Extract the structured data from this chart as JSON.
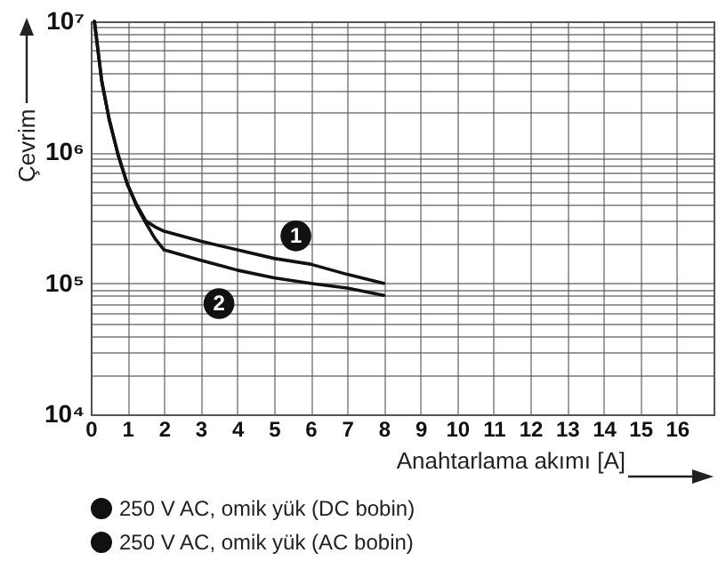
{
  "chart_data": {
    "type": "line",
    "xlabel": "Anahtarlama akımı [A]",
    "ylabel": "Çevrim",
    "x": [
      0.1,
      0.3,
      0.5,
      0.75,
      1,
      1.25,
      1.5,
      1.75,
      2,
      3,
      4,
      5,
      6,
      7,
      8
    ],
    "series": [
      {
        "name": "250 V AC, omik yük (DC bobin)",
        "color": "#111111",
        "values": [
          10000000,
          3500000,
          1800000,
          950000,
          570000,
          400000,
          300000,
          270000,
          250000,
          210000,
          180000,
          155000,
          140000,
          117000,
          100000
        ]
      },
      {
        "name": "250 V AC, omik yük (AC bobin)",
        "color": "#111111",
        "values": [
          10000000,
          3500000,
          1800000,
          950000,
          570000,
          390000,
          290000,
          220000,
          180000,
          150000,
          126000,
          110000,
          100000,
          92000,
          81000
        ]
      }
    ],
    "annotations": [
      {
        "text": "1",
        "x": 5.6,
        "y": 230000
      },
      {
        "text": "2",
        "x": 3.5,
        "y": 70000
      }
    ],
    "log": "y",
    "xlim": [
      0,
      17
    ],
    "xticks": [
      0,
      1,
      2,
      3,
      4,
      5,
      6,
      7,
      8,
      9,
      10,
      11,
      12,
      13,
      14,
      15,
      16
    ],
    "ylim": [
      10000,
      10000000
    ],
    "yticks": [
      {
        "value": 10000,
        "label": "10⁴"
      },
      {
        "value": 20000,
        "label": null
      },
      {
        "value": 30000,
        "label": null
      },
      {
        "value": 40000,
        "label": null
      },
      {
        "value": 50000,
        "label": null
      },
      {
        "value": 60000,
        "label": null
      },
      {
        "value": 70000,
        "label": null
      },
      {
        "value": 80000,
        "label": null
      },
      {
        "value": 90000,
        "label": null
      },
      {
        "value": 100000,
        "label": "10⁵"
      },
      {
        "value": 200000,
        "label": null
      },
      {
        "value": 300000,
        "label": null
      },
      {
        "value": 400000,
        "label": null
      },
      {
        "value": 500000,
        "label": null
      },
      {
        "value": 600000,
        "label": null
      },
      {
        "value": 700000,
        "label": null
      },
      {
        "value": 800000,
        "label": null
      },
      {
        "value": 900000,
        "label": null
      },
      {
        "value": 1000000,
        "label": "10⁶"
      },
      {
        "value": 2000000,
        "label": null
      },
      {
        "value": 3000000,
        "label": null
      },
      {
        "value": 4000000,
        "label": null
      },
      {
        "value": 5000000,
        "label": null
      },
      {
        "value": 6000000,
        "label": null
      },
      {
        "value": 7000000,
        "label": null
      },
      {
        "value": 8000000,
        "label": null
      },
      {
        "value": 9000000,
        "label": null
      },
      {
        "value": 10000000,
        "label": "10⁷"
      }
    ],
    "grid": true,
    "legend": "bottom",
    "marker": "none",
    "line_style": "solid"
  }
}
